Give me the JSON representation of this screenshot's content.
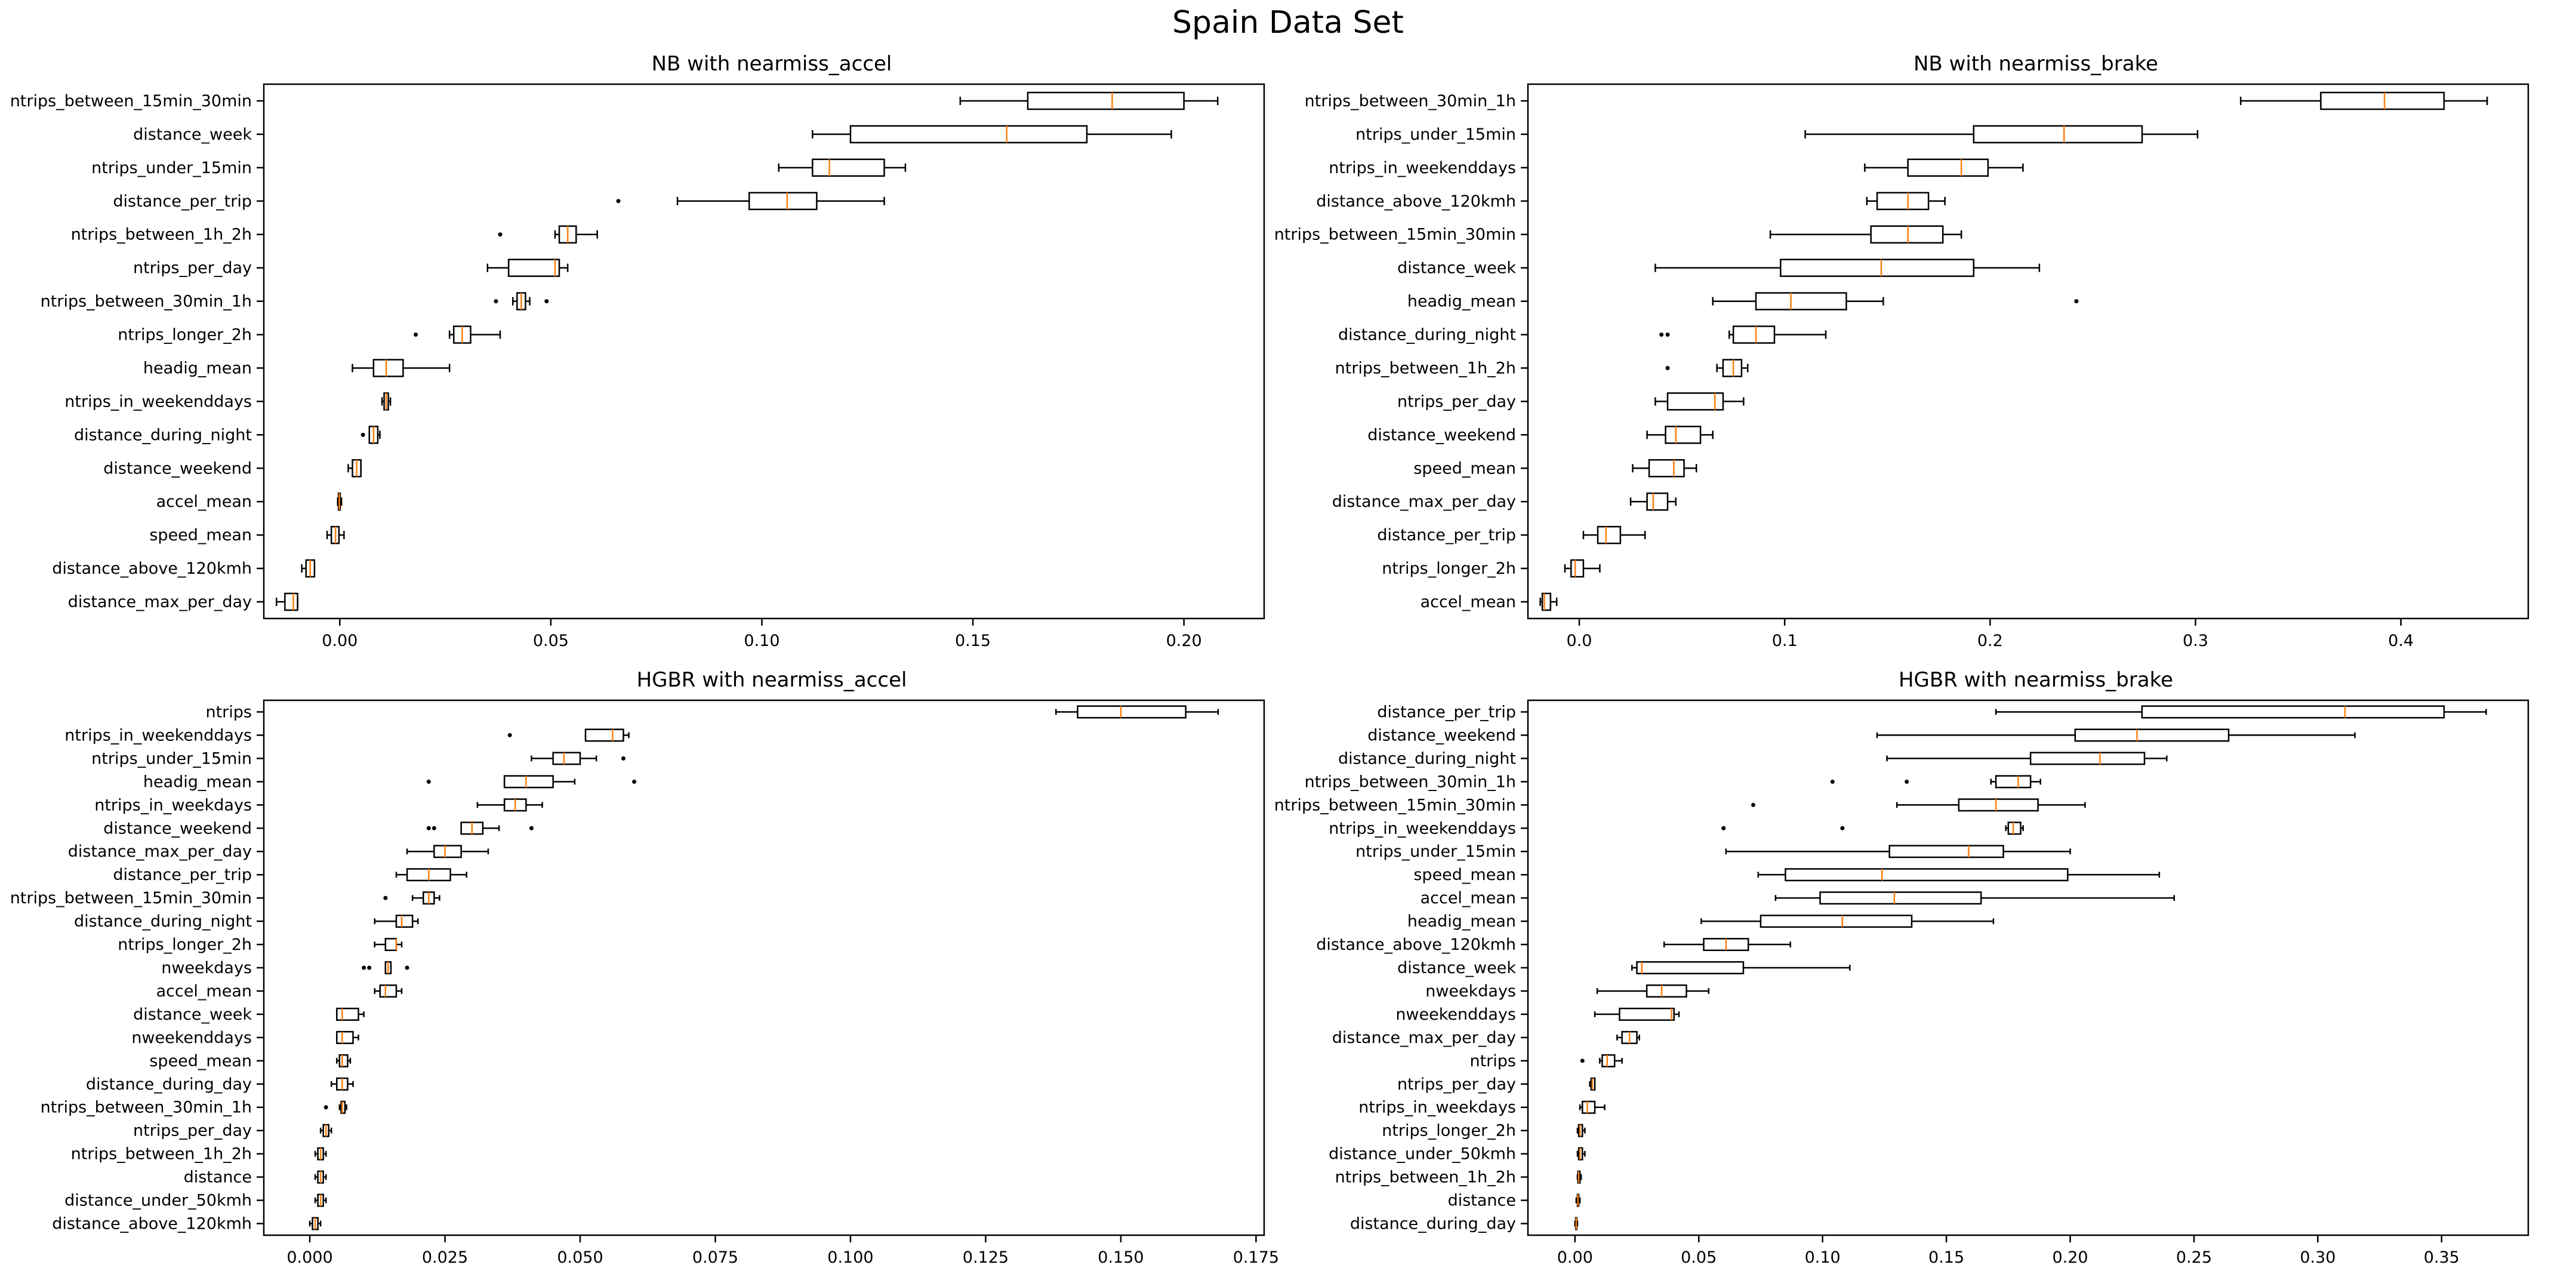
{
  "figure_title": "Spain Data Set",
  "colors": {
    "median": "#ff7f0e",
    "box": "#000000",
    "background": "#ffffff"
  },
  "chart_data": [
    {
      "type": "boxplot",
      "orientation": "horizontal",
      "title": "NB with nearmiss_accel",
      "xlabel": "",
      "ylabel": "",
      "xlim": [
        -0.018,
        0.219
      ],
      "xticks": [
        0.0,
        0.05,
        0.1,
        0.15,
        0.2
      ],
      "xtick_labels": [
        "0.00",
        "0.05",
        "0.10",
        "0.15",
        "0.20"
      ],
      "categories": [
        "ntrips_between_15min_30min",
        "distance_week",
        "ntrips_under_15min",
        "distance_per_trip",
        "ntrips_between_1h_2h",
        "ntrips_per_day",
        "ntrips_between_30min_1h",
        "ntrips_longer_2h",
        "headig_mean",
        "ntrips_in_weekenddays",
        "distance_during_night",
        "distance_weekend",
        "accel_mean",
        "speed_mean",
        "distance_above_120kmh",
        "distance_max_per_day"
      ],
      "boxes": [
        {
          "whislo": 0.147,
          "q1": 0.163,
          "med": 0.183,
          "q3": 0.2,
          "whishi": 0.208,
          "fliers": []
        },
        {
          "whislo": 0.112,
          "q1": 0.121,
          "med": 0.158,
          "q3": 0.177,
          "whishi": 0.197,
          "fliers": []
        },
        {
          "whislo": 0.104,
          "q1": 0.112,
          "med": 0.116,
          "q3": 0.129,
          "whishi": 0.134,
          "fliers": []
        },
        {
          "whislo": 0.08,
          "q1": 0.097,
          "med": 0.106,
          "q3": 0.113,
          "whishi": 0.129,
          "fliers": [
            0.066
          ]
        },
        {
          "whislo": 0.051,
          "q1": 0.052,
          "med": 0.054,
          "q3": 0.056,
          "whishi": 0.061,
          "fliers": [
            0.038
          ]
        },
        {
          "whislo": 0.035,
          "q1": 0.04,
          "med": 0.051,
          "q3": 0.052,
          "whishi": 0.054,
          "fliers": []
        },
        {
          "whislo": 0.041,
          "q1": 0.042,
          "med": 0.043,
          "q3": 0.044,
          "whishi": 0.045,
          "fliers": [
            0.037,
            0.049
          ]
        },
        {
          "whislo": 0.026,
          "q1": 0.027,
          "med": 0.029,
          "q3": 0.031,
          "whishi": 0.038,
          "fliers": [
            0.018
          ]
        },
        {
          "whislo": 0.003,
          "q1": 0.008,
          "med": 0.011,
          "q3": 0.015,
          "whishi": 0.026,
          "fliers": []
        },
        {
          "whislo": 0.01,
          "q1": 0.0105,
          "med": 0.011,
          "q3": 0.0115,
          "whishi": 0.012,
          "fliers": []
        },
        {
          "whislo": 0.007,
          "q1": 0.007,
          "med": 0.008,
          "q3": 0.009,
          "whishi": 0.0095,
          "fliers": [
            0.0055
          ]
        },
        {
          "whislo": 0.002,
          "q1": 0.003,
          "med": 0.004,
          "q3": 0.005,
          "whishi": 0.005,
          "fliers": []
        },
        {
          "whislo": -0.0005,
          "q1": -0.0003,
          "med": -0.0001,
          "q3": 0.0001,
          "whishi": 0.0004,
          "fliers": []
        },
        {
          "whislo": -0.003,
          "q1": -0.002,
          "med": -0.001,
          "q3": -0.0002,
          "whishi": 0.001,
          "fliers": []
        },
        {
          "whislo": -0.009,
          "q1": -0.008,
          "med": -0.007,
          "q3": -0.006,
          "whishi": -0.006,
          "fliers": []
        },
        {
          "whislo": -0.015,
          "q1": -0.013,
          "med": -0.011,
          "q3": -0.01,
          "whishi": -0.01,
          "fliers": []
        }
      ]
    },
    {
      "type": "boxplot",
      "orientation": "horizontal",
      "title": "NB with nearmiss_brake",
      "xlabel": "",
      "ylabel": "",
      "xlim": [
        -0.025,
        0.462
      ],
      "xticks": [
        0.0,
        0.1,
        0.2,
        0.3,
        0.4
      ],
      "xtick_labels": [
        "0.0",
        "0.1",
        "0.2",
        "0.3",
        "0.4"
      ],
      "categories": [
        "ntrips_between_30min_1h",
        "ntrips_under_15min",
        "ntrips_in_weekenddays",
        "distance_above_120kmh",
        "ntrips_between_15min_30min",
        "distance_week",
        "headig_mean",
        "distance_during_night",
        "ntrips_between_1h_2h",
        "ntrips_per_day",
        "distance_weekend",
        "speed_mean",
        "distance_max_per_day",
        "distance_per_trip",
        "ntrips_longer_2h",
        "accel_mean"
      ],
      "boxes": [
        {
          "whislo": 0.322,
          "q1": 0.361,
          "med": 0.392,
          "q3": 0.421,
          "whishi": 0.442,
          "fliers": []
        },
        {
          "whislo": 0.11,
          "q1": 0.192,
          "med": 0.236,
          "q3": 0.274,
          "whishi": 0.301,
          "fliers": []
        },
        {
          "whislo": 0.139,
          "q1": 0.16,
          "med": 0.186,
          "q3": 0.199,
          "whishi": 0.216,
          "fliers": []
        },
        {
          "whislo": 0.14,
          "q1": 0.145,
          "med": 0.16,
          "q3": 0.17,
          "whishi": 0.178,
          "fliers": []
        },
        {
          "whislo": 0.093,
          "q1": 0.142,
          "med": 0.16,
          "q3": 0.177,
          "whishi": 0.186,
          "fliers": []
        },
        {
          "whislo": 0.037,
          "q1": 0.098,
          "med": 0.147,
          "q3": 0.192,
          "whishi": 0.224,
          "fliers": []
        },
        {
          "whislo": 0.065,
          "q1": 0.086,
          "med": 0.103,
          "q3": 0.13,
          "whishi": 0.148,
          "fliers": [
            0.242
          ]
        },
        {
          "whislo": 0.073,
          "q1": 0.075,
          "med": 0.086,
          "q3": 0.095,
          "whishi": 0.12,
          "fliers": [
            0.04,
            0.043
          ]
        },
        {
          "whislo": 0.067,
          "q1": 0.07,
          "med": 0.075,
          "q3": 0.079,
          "whishi": 0.082,
          "fliers": [
            0.043
          ]
        },
        {
          "whislo": 0.037,
          "q1": 0.043,
          "med": 0.066,
          "q3": 0.07,
          "whishi": 0.08,
          "fliers": []
        },
        {
          "whislo": 0.033,
          "q1": 0.042,
          "med": 0.047,
          "q3": 0.059,
          "whishi": 0.065,
          "fliers": []
        },
        {
          "whislo": 0.026,
          "q1": 0.034,
          "med": 0.046,
          "q3": 0.051,
          "whishi": 0.057,
          "fliers": []
        },
        {
          "whislo": 0.025,
          "q1": 0.033,
          "med": 0.036,
          "q3": 0.043,
          "whishi": 0.047,
          "fliers": []
        },
        {
          "whislo": 0.002,
          "q1": 0.009,
          "med": 0.013,
          "q3": 0.02,
          "whishi": 0.032,
          "fliers": []
        },
        {
          "whislo": -0.007,
          "q1": -0.004,
          "med": -0.002,
          "q3": 0.002,
          "whishi": 0.01,
          "fliers": []
        },
        {
          "whislo": -0.019,
          "q1": -0.018,
          "med": -0.017,
          "q3": -0.014,
          "whishi": -0.011,
          "fliers": []
        }
      ]
    },
    {
      "type": "boxplot",
      "orientation": "horizontal",
      "title": "HGBR with nearmiss_accel",
      "xlabel": "",
      "ylabel": "",
      "xlim": [
        -0.0085,
        0.1765
      ],
      "xticks": [
        0.0,
        0.025,
        0.05,
        0.075,
        0.1,
        0.125,
        0.15,
        0.175
      ],
      "xtick_labels": [
        "0.000",
        "0.025",
        "0.050",
        "0.075",
        "0.100",
        "0.125",
        "0.150",
        "0.175"
      ],
      "categories": [
        "ntrips",
        "ntrips_in_weekenddays",
        "ntrips_under_15min",
        "headig_mean",
        "ntrips_in_weekdays",
        "distance_weekend",
        "distance_max_per_day",
        "distance_per_trip",
        "ntrips_between_15min_30min",
        "distance_during_night",
        "ntrips_longer_2h",
        "nweekdays",
        "accel_mean",
        "distance_week",
        "nweekenddays",
        "speed_mean",
        "distance_during_day",
        "ntrips_between_30min_1h",
        "ntrips_per_day",
        "ntrips_between_1h_2h",
        "distance",
        "distance_under_50kmh",
        "distance_above_120kmh"
      ],
      "boxes": [
        {
          "whislo": 0.138,
          "q1": 0.142,
          "med": 0.15,
          "q3": 0.162,
          "whishi": 0.168,
          "fliers": []
        },
        {
          "whislo": 0.051,
          "q1": 0.051,
          "med": 0.056,
          "q3": 0.058,
          "whishi": 0.059,
          "fliers": [
            0.037
          ]
        },
        {
          "whislo": 0.041,
          "q1": 0.045,
          "med": 0.047,
          "q3": 0.05,
          "whishi": 0.053,
          "fliers": [
            0.058
          ]
        },
        {
          "whislo": 0.036,
          "q1": 0.036,
          "med": 0.04,
          "q3": 0.045,
          "whishi": 0.049,
          "fliers": [
            0.022,
            0.06
          ]
        },
        {
          "whislo": 0.031,
          "q1": 0.036,
          "med": 0.038,
          "q3": 0.04,
          "whishi": 0.043,
          "fliers": []
        },
        {
          "whislo": 0.028,
          "q1": 0.028,
          "med": 0.03,
          "q3": 0.032,
          "whishi": 0.035,
          "fliers": [
            0.022,
            0.023,
            0.041
          ]
        },
        {
          "whislo": 0.018,
          "q1": 0.023,
          "med": 0.025,
          "q3": 0.028,
          "whishi": 0.033,
          "fliers": []
        },
        {
          "whislo": 0.016,
          "q1": 0.018,
          "med": 0.022,
          "q3": 0.026,
          "whishi": 0.029,
          "fliers": []
        },
        {
          "whislo": 0.019,
          "q1": 0.021,
          "med": 0.022,
          "q3": 0.023,
          "whishi": 0.024,
          "fliers": [
            0.014
          ]
        },
        {
          "whislo": 0.012,
          "q1": 0.016,
          "med": 0.017,
          "q3": 0.019,
          "whishi": 0.02,
          "fliers": []
        },
        {
          "whislo": 0.012,
          "q1": 0.014,
          "med": 0.016,
          "q3": 0.016,
          "whishi": 0.017,
          "fliers": []
        },
        {
          "whislo": 0.014,
          "q1": 0.014,
          "med": 0.0145,
          "q3": 0.015,
          "whishi": 0.015,
          "fliers": [
            0.01,
            0.011,
            0.018
          ]
        },
        {
          "whislo": 0.012,
          "q1": 0.013,
          "med": 0.014,
          "q3": 0.016,
          "whishi": 0.017,
          "fliers": []
        },
        {
          "whislo": 0.005,
          "q1": 0.005,
          "med": 0.006,
          "q3": 0.009,
          "whishi": 0.01,
          "fliers": []
        },
        {
          "whislo": 0.005,
          "q1": 0.005,
          "med": 0.006,
          "q3": 0.008,
          "whishi": 0.009,
          "fliers": []
        },
        {
          "whislo": 0.005,
          "q1": 0.0055,
          "med": 0.006,
          "q3": 0.007,
          "whishi": 0.0075,
          "fliers": []
        },
        {
          "whislo": 0.004,
          "q1": 0.005,
          "med": 0.006,
          "q3": 0.007,
          "whishi": 0.008,
          "fliers": []
        },
        {
          "whislo": 0.0055,
          "q1": 0.0058,
          "med": 0.006,
          "q3": 0.0065,
          "whishi": 0.0068,
          "fliers": [
            0.003
          ]
        },
        {
          "whislo": 0.002,
          "q1": 0.0025,
          "med": 0.003,
          "q3": 0.0035,
          "whishi": 0.004,
          "fliers": []
        },
        {
          "whislo": 0.001,
          "q1": 0.0015,
          "med": 0.002,
          "q3": 0.0025,
          "whishi": 0.003,
          "fliers": []
        },
        {
          "whislo": 0.001,
          "q1": 0.0015,
          "med": 0.002,
          "q3": 0.0025,
          "whishi": 0.003,
          "fliers": []
        },
        {
          "whislo": 0.001,
          "q1": 0.0015,
          "med": 0.002,
          "q3": 0.0025,
          "whishi": 0.003,
          "fliers": []
        },
        {
          "whislo": 0.0,
          "q1": 0.0005,
          "med": 0.001,
          "q3": 0.0015,
          "whishi": 0.002,
          "fliers": []
        }
      ]
    },
    {
      "type": "boxplot",
      "orientation": "horizontal",
      "title": "HGBR with nearmiss_brake",
      "xlabel": "",
      "ylabel": "",
      "xlim": [
        -0.019,
        0.385
      ],
      "xticks": [
        0.0,
        0.05,
        0.1,
        0.15,
        0.2,
        0.25,
        0.3,
        0.35
      ],
      "xtick_labels": [
        "0.00",
        "0.05",
        "0.10",
        "0.15",
        "0.20",
        "0.25",
        "0.30",
        "0.35"
      ],
      "categories": [
        "distance_per_trip",
        "distance_weekend",
        "distance_during_night",
        "ntrips_between_30min_1h",
        "ntrips_between_15min_30min",
        "ntrips_in_weekenddays",
        "ntrips_under_15min",
        "speed_mean",
        "accel_mean",
        "headig_mean",
        "distance_above_120kmh",
        "distance_week",
        "nweekdays",
        "nweekenddays",
        "distance_max_per_day",
        "ntrips",
        "ntrips_per_day",
        "ntrips_in_weekdays",
        "ntrips_longer_2h",
        "distance_under_50kmh",
        "ntrips_between_1h_2h",
        "distance",
        "distance_during_day"
      ],
      "boxes": [
        {
          "whislo": 0.17,
          "q1": 0.229,
          "med": 0.311,
          "q3": 0.351,
          "whishi": 0.368,
          "fliers": []
        },
        {
          "whislo": 0.122,
          "q1": 0.202,
          "med": 0.227,
          "q3": 0.264,
          "whishi": 0.315,
          "fliers": []
        },
        {
          "whislo": 0.126,
          "q1": 0.184,
          "med": 0.212,
          "q3": 0.23,
          "whishi": 0.239,
          "fliers": []
        },
        {
          "whislo": 0.168,
          "q1": 0.17,
          "med": 0.179,
          "q3": 0.184,
          "whishi": 0.188,
          "fliers": [
            0.104,
            0.134
          ]
        },
        {
          "whislo": 0.13,
          "q1": 0.155,
          "med": 0.17,
          "q3": 0.187,
          "whishi": 0.206,
          "fliers": [
            0.072
          ]
        },
        {
          "whislo": 0.174,
          "q1": 0.175,
          "med": 0.177,
          "q3": 0.18,
          "whishi": 0.181,
          "fliers": [
            0.06,
            0.108
          ]
        },
        {
          "whislo": 0.061,
          "q1": 0.127,
          "med": 0.159,
          "q3": 0.173,
          "whishi": 0.2,
          "fliers": []
        },
        {
          "whislo": 0.074,
          "q1": 0.085,
          "med": 0.124,
          "q3": 0.199,
          "whishi": 0.236,
          "fliers": []
        },
        {
          "whislo": 0.081,
          "q1": 0.099,
          "med": 0.129,
          "q3": 0.164,
          "whishi": 0.242,
          "fliers": []
        },
        {
          "whislo": 0.051,
          "q1": 0.075,
          "med": 0.108,
          "q3": 0.136,
          "whishi": 0.169,
          "fliers": []
        },
        {
          "whislo": 0.036,
          "q1": 0.052,
          "med": 0.061,
          "q3": 0.07,
          "whishi": 0.087,
          "fliers": []
        },
        {
          "whislo": 0.023,
          "q1": 0.025,
          "med": 0.027,
          "q3": 0.068,
          "whishi": 0.111,
          "fliers": []
        },
        {
          "whislo": 0.009,
          "q1": 0.029,
          "med": 0.035,
          "q3": 0.045,
          "whishi": 0.054,
          "fliers": []
        },
        {
          "whislo": 0.008,
          "q1": 0.018,
          "med": 0.039,
          "q3": 0.04,
          "whishi": 0.042,
          "fliers": []
        },
        {
          "whislo": 0.017,
          "q1": 0.019,
          "med": 0.022,
          "q3": 0.025,
          "whishi": 0.026,
          "fliers": []
        },
        {
          "whislo": 0.01,
          "q1": 0.011,
          "med": 0.013,
          "q3": 0.016,
          "whishi": 0.019,
          "fliers": [
            0.003
          ]
        },
        {
          "whislo": 0.006,
          "q1": 0.0065,
          "med": 0.007,
          "q3": 0.008,
          "whishi": 0.008,
          "fliers": []
        },
        {
          "whislo": 0.002,
          "q1": 0.003,
          "med": 0.005,
          "q3": 0.008,
          "whishi": 0.012,
          "fliers": []
        },
        {
          "whislo": 0.001,
          "q1": 0.0015,
          "med": 0.002,
          "q3": 0.003,
          "whishi": 0.004,
          "fliers": []
        },
        {
          "whislo": 0.001,
          "q1": 0.0015,
          "med": 0.002,
          "q3": 0.003,
          "whishi": 0.004,
          "fliers": []
        },
        {
          "whislo": 0.001,
          "q1": 0.0012,
          "med": 0.0015,
          "q3": 0.002,
          "whishi": 0.0025,
          "fliers": []
        },
        {
          "whislo": 0.0005,
          "q1": 0.001,
          "med": 0.0012,
          "q3": 0.0015,
          "whishi": 0.002,
          "fliers": []
        },
        {
          "whislo": 0.0,
          "q1": 0.0003,
          "med": 0.0005,
          "q3": 0.0007,
          "whishi": 0.001,
          "fliers": []
        }
      ]
    }
  ]
}
